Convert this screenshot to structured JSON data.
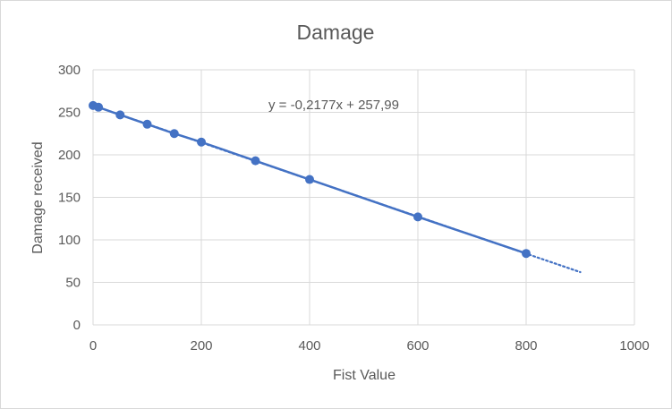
{
  "chart_data": {
    "type": "scatter",
    "title": "Damage",
    "xlabel": "Fist Value",
    "ylabel": "Damage received",
    "xlim": [
      0,
      1000
    ],
    "ylim": [
      0,
      300
    ],
    "xticks": [
      0,
      200,
      400,
      600,
      800,
      1000
    ],
    "yticks": [
      0,
      50,
      100,
      150,
      200,
      250,
      300
    ],
    "grid": true,
    "legend": "none",
    "series": [
      {
        "color": "#4472c4",
        "marker": "circle",
        "connect_line": true,
        "x": [
          0,
          10,
          50,
          100,
          150,
          200,
          300,
          400,
          600,
          800
        ],
        "y": [
          258,
          256,
          247,
          236,
          225,
          215,
          193,
          171,
          127,
          84
        ]
      }
    ],
    "trendline": {
      "type": "linear",
      "style": "dotted",
      "color": "#4472c4",
      "slope": -0.2177,
      "intercept": 257.99,
      "x_range": [
        0,
        900
      ],
      "equation_label": "y = -0,2177x + 257,99"
    }
  }
}
